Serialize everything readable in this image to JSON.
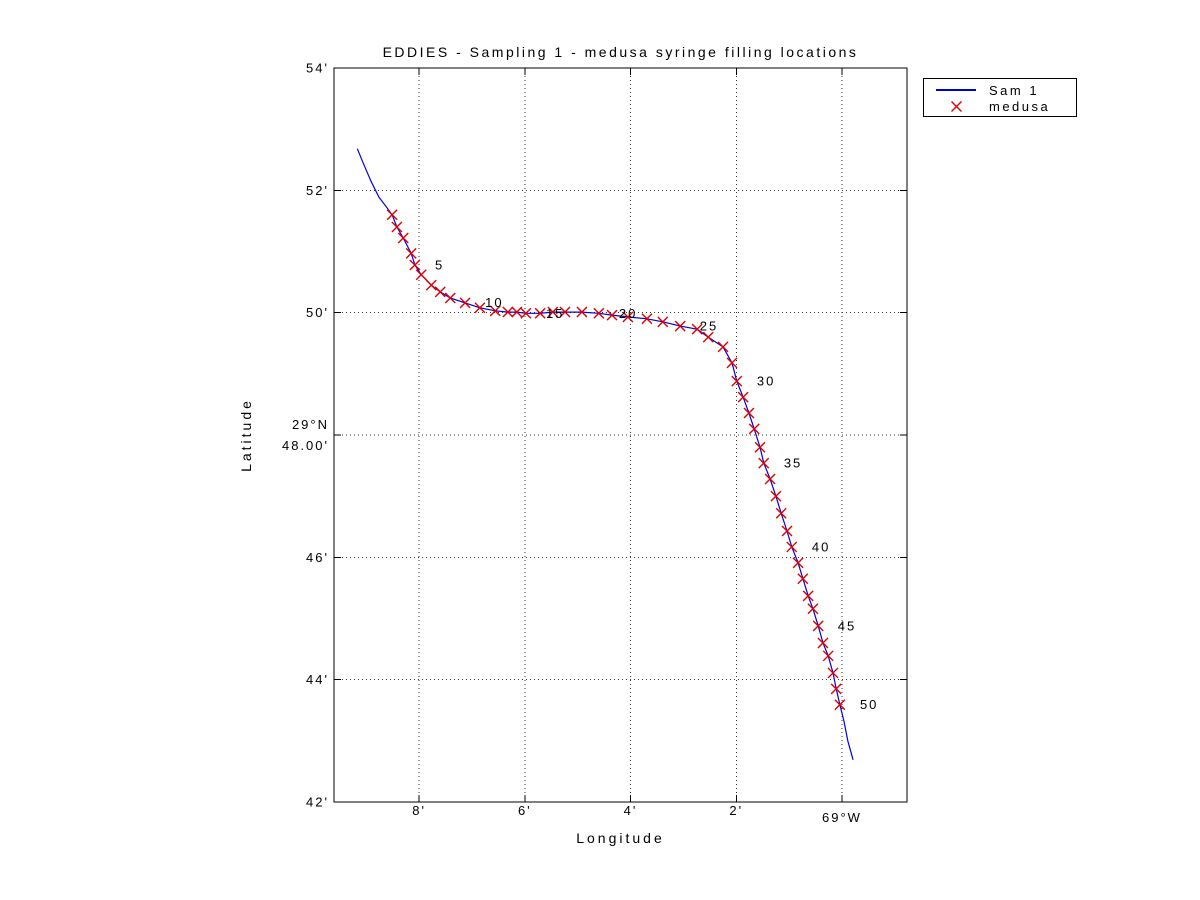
{
  "figure": {
    "background": "#ffffff",
    "grid_color": "#333333",
    "axis_color": "#000000"
  },
  "chart_data": {
    "type": "line",
    "title": "EDDIES - Sampling 1 - medusa syringe filling locations",
    "xlabel": "Longitude",
    "ylabel": "Latitude",
    "grid": "on",
    "x_axis": {
      "description": "longitude shown as minutes west of 69W, decreasing to the right",
      "left_value": 9.61,
      "right_value": -1.23,
      "ticks": [
        {
          "value": 8,
          "label": "8'"
        },
        {
          "value": 6,
          "label": "6'"
        },
        {
          "value": 4,
          "label": "4'"
        },
        {
          "value": 2,
          "label": "2'"
        },
        {
          "value": 0,
          "label": "69°W"
        }
      ]
    },
    "y_axis": {
      "description": "latitude shown as minutes north of 29N",
      "min": 42,
      "max": 54,
      "ticks": [
        {
          "value": 54,
          "label": "54'"
        },
        {
          "value": 52,
          "label": "52'"
        },
        {
          "value": 50,
          "label": "50'"
        },
        {
          "value": 48,
          "label": "29°N 48.00'",
          "label_lines": [
            "29°N",
            "48.00'"
          ]
        },
        {
          "value": 46,
          "label": "46'"
        },
        {
          "value": 44,
          "label": "44'"
        },
        {
          "value": 42,
          "label": "42'"
        }
      ]
    },
    "legend": {
      "position": "outside-top-right",
      "entries": [
        {
          "name": "Sam 1",
          "marker": "line",
          "color": "#0000dd"
        },
        {
          "name": "medusa",
          "marker": "x",
          "color": "#dd0000"
        }
      ]
    },
    "series": [
      {
        "name": "Sam 1",
        "type": "line",
        "color": "#0000dd",
        "composition": "track_before + markers + track_after"
      },
      {
        "name": "medusa",
        "type": "scatter",
        "marker": "x",
        "color": "#dd0000",
        "composition": "markers"
      }
    ],
    "track_before": [
      [
        9.17,
        52.68
      ],
      [
        9.06,
        52.45
      ],
      [
        8.91,
        52.15
      ],
      [
        8.76,
        51.89
      ],
      [
        8.62,
        51.73
      ]
    ],
    "markers": [
      [
        8.51,
        51.6
      ],
      [
        8.42,
        51.4
      ],
      [
        8.3,
        51.22
      ],
      [
        8.15,
        50.97
      ],
      [
        8.08,
        50.78
      ],
      [
        7.96,
        50.62
      ],
      [
        7.77,
        50.45
      ],
      [
        7.6,
        50.34
      ],
      [
        7.41,
        50.24
      ],
      [
        7.13,
        50.16
      ],
      [
        6.85,
        50.08
      ],
      [
        6.56,
        50.03
      ],
      [
        6.32,
        50.01
      ],
      [
        6.15,
        50.01
      ],
      [
        5.98,
        49.99
      ],
      [
        5.71,
        49.99
      ],
      [
        5.47,
        50.01
      ],
      [
        5.24,
        50.01
      ],
      [
        4.92,
        50.01
      ],
      [
        4.6,
        49.99
      ],
      [
        4.35,
        49.96
      ],
      [
        4.05,
        49.93
      ],
      [
        3.69,
        49.9
      ],
      [
        3.39,
        49.85
      ],
      [
        3.06,
        49.78
      ],
      [
        2.74,
        49.73
      ],
      [
        2.53,
        49.6
      ],
      [
        2.25,
        49.44
      ],
      [
        2.08,
        49.18
      ],
      [
        1.99,
        48.88
      ],
      [
        1.87,
        48.62
      ],
      [
        1.76,
        48.36
      ],
      [
        1.66,
        48.1
      ],
      [
        1.55,
        47.8
      ],
      [
        1.48,
        47.54
      ],
      [
        1.36,
        47.28
      ],
      [
        1.25,
        47.0
      ],
      [
        1.15,
        46.72
      ],
      [
        1.04,
        46.43
      ],
      [
        0.95,
        46.17
      ],
      [
        0.83,
        45.91
      ],
      [
        0.74,
        45.65
      ],
      [
        0.64,
        45.37
      ],
      [
        0.55,
        45.16
      ],
      [
        0.45,
        44.88
      ],
      [
        0.36,
        44.6
      ],
      [
        0.26,
        44.39
      ],
      [
        0.17,
        44.11
      ],
      [
        0.11,
        43.85
      ],
      [
        0.04,
        43.59
      ]
    ],
    "track_after": [
      [
        -0.04,
        43.31
      ],
      [
        -0.11,
        43.0
      ],
      [
        -0.21,
        42.69
      ]
    ],
    "point_labels": [
      {
        "text": "5",
        "x": 7.7,
        "y": 50.78
      },
      {
        "text": "10",
        "x": 6.75,
        "y": 50.17
      },
      {
        "text": "15",
        "x": 5.6,
        "y": 49.99
      },
      {
        "text": "20",
        "x": 4.22,
        "y": 49.99
      },
      {
        "text": "25",
        "x": 2.69,
        "y": 49.78
      },
      {
        "text": "30",
        "x": 1.61,
        "y": 48.88
      },
      {
        "text": "35",
        "x": 1.1,
        "y": 47.54
      },
      {
        "text": "40",
        "x": 0.57,
        "y": 46.17
      },
      {
        "text": "45",
        "x": 0.08,
        "y": 44.88
      },
      {
        "text": "50",
        "x": -0.34,
        "y": 43.59
      }
    ]
  }
}
